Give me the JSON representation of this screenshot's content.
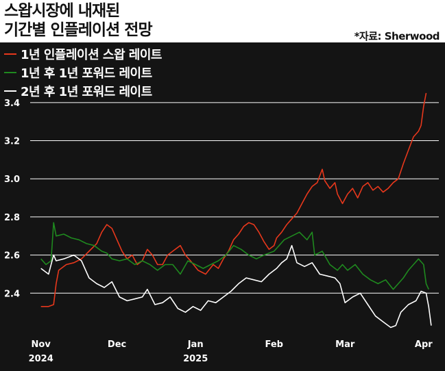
{
  "title_line1": "스왑시장에 내재된",
  "title_line2": "기간별 인플레이션 전망",
  "source": "*자료: Sherwood",
  "colors": {
    "panel": "#141414",
    "grid": "#ffffff",
    "series": [
      "#e8381c",
      "#1f8a1f",
      "#ffffff"
    ]
  },
  "chart_data": {
    "type": "line",
    "ylim": [
      2.2,
      3.5
    ],
    "yticks": [
      2.4,
      2.6,
      2.8,
      3.0,
      3.2,
      3.4
    ],
    "ytick_labels": [
      "2.4",
      "2.6",
      "2.8",
      "3.0",
      "3.2",
      "3.4"
    ],
    "grid": true,
    "legend_position": "top-left",
    "xlim": [
      "2024-10-31",
      "2025-04-07"
    ],
    "xticks": [
      {
        "date": "2024-11-01",
        "label": "Nov",
        "sublabel": "2024"
      },
      {
        "date": "2024-12-01",
        "label": "Dec",
        "sublabel": ""
      },
      {
        "date": "2025-01-01",
        "label": "Jan",
        "sublabel": "2025"
      },
      {
        "date": "2025-02-01",
        "label": "Feb",
        "sublabel": ""
      },
      {
        "date": "2025-03-01",
        "label": "Mar",
        "sublabel": ""
      },
      {
        "date": "2025-04-01",
        "label": "Apr",
        "sublabel": ""
      }
    ],
    "series": [
      {
        "name": "1년 인플레이션 스왑 레이트",
        "color": "#e8381c",
        "points": [
          [
            "2024-11-01",
            2.33
          ],
          [
            "2024-11-04",
            2.33
          ],
          [
            "2024-11-06",
            2.34
          ],
          [
            "2024-11-07",
            2.45
          ],
          [
            "2024-11-08",
            2.52
          ],
          [
            "2024-11-11",
            2.55
          ],
          [
            "2024-11-14",
            2.56
          ],
          [
            "2024-11-17",
            2.58
          ],
          [
            "2024-11-20",
            2.62
          ],
          [
            "2024-11-23",
            2.66
          ],
          [
            "2024-11-25",
            2.72
          ],
          [
            "2024-11-27",
            2.76
          ],
          [
            "2024-11-29",
            2.74
          ],
          [
            "2024-12-01",
            2.68
          ],
          [
            "2024-12-03",
            2.62
          ],
          [
            "2024-12-05",
            2.58
          ],
          [
            "2024-12-07",
            2.6
          ],
          [
            "2024-12-09",
            2.55
          ],
          [
            "2024-12-11",
            2.57
          ],
          [
            "2024-12-13",
            2.63
          ],
          [
            "2024-12-15",
            2.6
          ],
          [
            "2024-12-17",
            2.55
          ],
          [
            "2024-12-19",
            2.55
          ],
          [
            "2024-12-21",
            2.6
          ],
          [
            "2024-12-23",
            2.62
          ],
          [
            "2024-12-26",
            2.65
          ],
          [
            "2024-12-28",
            2.6
          ],
          [
            "2024-12-30",
            2.57
          ],
          [
            "2025-01-02",
            2.52
          ],
          [
            "2025-01-05",
            2.5
          ],
          [
            "2025-01-08",
            2.55
          ],
          [
            "2025-01-10",
            2.53
          ],
          [
            "2025-01-12",
            2.58
          ],
          [
            "2025-01-14",
            2.62
          ],
          [
            "2025-01-16",
            2.68
          ],
          [
            "2025-01-18",
            2.71
          ],
          [
            "2025-01-20",
            2.75
          ],
          [
            "2025-01-22",
            2.77
          ],
          [
            "2025-01-24",
            2.76
          ],
          [
            "2025-01-26",
            2.72
          ],
          [
            "2025-01-28",
            2.67
          ],
          [
            "2025-01-30",
            2.63
          ],
          [
            "2025-02-01",
            2.65
          ],
          [
            "2025-02-02",
            2.69
          ],
          [
            "2025-02-04",
            2.72
          ],
          [
            "2025-02-06",
            2.76
          ],
          [
            "2025-02-08",
            2.79
          ],
          [
            "2025-02-10",
            2.82
          ],
          [
            "2025-02-12",
            2.87
          ],
          [
            "2025-02-14",
            2.92
          ],
          [
            "2025-02-16",
            2.96
          ],
          [
            "2025-02-18",
            2.98
          ],
          [
            "2025-02-20",
            3.05
          ],
          [
            "2025-02-21",
            2.99
          ],
          [
            "2025-02-23",
            2.95
          ],
          [
            "2025-02-25",
            2.98
          ],
          [
            "2025-02-26",
            2.92
          ],
          [
            "2025-02-28",
            2.87
          ],
          [
            "2025-03-02",
            2.92
          ],
          [
            "2025-03-04",
            2.95
          ],
          [
            "2025-03-06",
            2.9
          ],
          [
            "2025-03-08",
            2.96
          ],
          [
            "2025-03-10",
            2.98
          ],
          [
            "2025-03-12",
            2.94
          ],
          [
            "2025-03-14",
            2.96
          ],
          [
            "2025-03-16",
            2.93
          ],
          [
            "2025-03-18",
            2.95
          ],
          [
            "2025-03-20",
            2.98
          ],
          [
            "2025-03-22",
            3.0
          ],
          [
            "2025-03-24",
            3.08
          ],
          [
            "2025-03-26",
            3.15
          ],
          [
            "2025-03-28",
            3.22
          ],
          [
            "2025-03-30",
            3.25
          ],
          [
            "2025-03-31",
            3.28
          ],
          [
            "2025-04-01",
            3.38
          ],
          [
            "2025-04-02",
            3.45
          ]
        ]
      },
      {
        "name": "1년 후 1년 포워드 레이트",
        "color": "#1f8a1f",
        "points": [
          [
            "2024-11-01",
            2.58
          ],
          [
            "2024-11-03",
            2.55
          ],
          [
            "2024-11-05",
            2.57
          ],
          [
            "2024-11-06",
            2.77
          ],
          [
            "2024-11-07",
            2.7
          ],
          [
            "2024-11-10",
            2.71
          ],
          [
            "2024-11-13",
            2.69
          ],
          [
            "2024-11-16",
            2.68
          ],
          [
            "2024-11-19",
            2.66
          ],
          [
            "2024-11-22",
            2.65
          ],
          [
            "2024-11-25",
            2.62
          ],
          [
            "2024-11-27",
            2.61
          ],
          [
            "2024-11-29",
            2.58
          ],
          [
            "2024-12-02",
            2.57
          ],
          [
            "2024-12-05",
            2.58
          ],
          [
            "2024-12-08",
            2.55
          ],
          [
            "2024-12-11",
            2.57
          ],
          [
            "2024-12-14",
            2.55
          ],
          [
            "2024-12-17",
            2.52
          ],
          [
            "2024-12-20",
            2.55
          ],
          [
            "2024-12-23",
            2.55
          ],
          [
            "2024-12-26",
            2.5
          ],
          [
            "2024-12-29",
            2.57
          ],
          [
            "2025-01-01",
            2.55
          ],
          [
            "2025-01-04",
            2.53
          ],
          [
            "2025-01-07",
            2.55
          ],
          [
            "2025-01-10",
            2.57
          ],
          [
            "2025-01-13",
            2.6
          ],
          [
            "2025-01-16",
            2.65
          ],
          [
            "2025-01-19",
            2.63
          ],
          [
            "2025-01-22",
            2.6
          ],
          [
            "2025-01-25",
            2.58
          ],
          [
            "2025-01-28",
            2.6
          ],
          [
            "2025-02-01",
            2.62
          ],
          [
            "2025-02-03",
            2.65
          ],
          [
            "2025-02-05",
            2.68
          ],
          [
            "2025-02-08",
            2.7
          ],
          [
            "2025-02-11",
            2.72
          ],
          [
            "2025-02-14",
            2.68
          ],
          [
            "2025-02-16",
            2.72
          ],
          [
            "2025-02-17",
            2.6
          ],
          [
            "2025-02-20",
            2.62
          ],
          [
            "2025-02-23",
            2.55
          ],
          [
            "2025-02-26",
            2.52
          ],
          [
            "2025-02-28",
            2.55
          ],
          [
            "2025-03-02",
            2.52
          ],
          [
            "2025-03-05",
            2.55
          ],
          [
            "2025-03-08",
            2.5
          ],
          [
            "2025-03-11",
            2.47
          ],
          [
            "2025-03-14",
            2.45
          ],
          [
            "2025-03-17",
            2.47
          ],
          [
            "2025-03-20",
            2.42
          ],
          [
            "2025-03-22",
            2.45
          ],
          [
            "2025-03-24",
            2.48
          ],
          [
            "2025-03-26",
            2.52
          ],
          [
            "2025-03-28",
            2.55
          ],
          [
            "2025-03-30",
            2.58
          ],
          [
            "2025-04-01",
            2.55
          ],
          [
            "2025-04-02",
            2.45
          ],
          [
            "2025-04-03",
            2.42
          ]
        ]
      },
      {
        "name": "2년 후 1년 포워드 레이트",
        "color": "#ffffff",
        "points": [
          [
            "2024-11-01",
            2.53
          ],
          [
            "2024-11-04",
            2.5
          ],
          [
            "2024-11-06",
            2.6
          ],
          [
            "2024-11-07",
            2.57
          ],
          [
            "2024-11-10",
            2.58
          ],
          [
            "2024-11-14",
            2.6
          ],
          [
            "2024-11-17",
            2.57
          ],
          [
            "2024-11-20",
            2.48
          ],
          [
            "2024-11-23",
            2.45
          ],
          [
            "2024-11-26",
            2.43
          ],
          [
            "2024-11-29",
            2.46
          ],
          [
            "2024-12-02",
            2.38
          ],
          [
            "2024-12-05",
            2.36
          ],
          [
            "2024-12-08",
            2.37
          ],
          [
            "2024-12-11",
            2.38
          ],
          [
            "2024-12-13",
            2.42
          ],
          [
            "2024-12-16",
            2.34
          ],
          [
            "2024-12-19",
            2.35
          ],
          [
            "2024-12-22",
            2.38
          ],
          [
            "2024-12-25",
            2.32
          ],
          [
            "2024-12-28",
            2.3
          ],
          [
            "2024-12-31",
            2.33
          ],
          [
            "2025-01-03",
            2.31
          ],
          [
            "2025-01-06",
            2.36
          ],
          [
            "2025-01-09",
            2.35
          ],
          [
            "2025-01-12",
            2.38
          ],
          [
            "2025-01-15",
            2.41
          ],
          [
            "2025-01-18",
            2.45
          ],
          [
            "2025-01-21",
            2.48
          ],
          [
            "2025-01-24",
            2.47
          ],
          [
            "2025-01-27",
            2.46
          ],
          [
            "2025-01-30",
            2.5
          ],
          [
            "2025-02-02",
            2.53
          ],
          [
            "2025-02-04",
            2.56
          ],
          [
            "2025-02-06",
            2.58
          ],
          [
            "2025-02-08",
            2.65
          ],
          [
            "2025-02-10",
            2.56
          ],
          [
            "2025-02-13",
            2.54
          ],
          [
            "2025-02-16",
            2.56
          ],
          [
            "2025-02-19",
            2.5
          ],
          [
            "2025-02-22",
            2.49
          ],
          [
            "2025-02-25",
            2.48
          ],
          [
            "2025-02-27",
            2.45
          ],
          [
            "2025-03-01",
            2.35
          ],
          [
            "2025-03-04",
            2.38
          ],
          [
            "2025-03-07",
            2.4
          ],
          [
            "2025-03-10",
            2.34
          ],
          [
            "2025-03-13",
            2.28
          ],
          [
            "2025-03-16",
            2.25
          ],
          [
            "2025-03-19",
            2.22
          ],
          [
            "2025-03-21",
            2.23
          ],
          [
            "2025-03-23",
            2.3
          ],
          [
            "2025-03-26",
            2.34
          ],
          [
            "2025-03-29",
            2.36
          ],
          [
            "2025-03-31",
            2.41
          ],
          [
            "2025-04-02",
            2.4
          ],
          [
            "2025-04-03",
            2.33
          ],
          [
            "2025-04-04",
            2.23
          ]
        ]
      }
    ]
  }
}
